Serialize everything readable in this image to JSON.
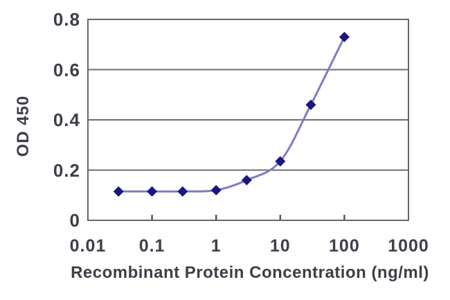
{
  "figure": {
    "background_color": "#ffffff"
  },
  "chart_data": {
    "type": "line",
    "title": "",
    "xlabel": "Recombinant Protein Concentration (ng/ml)",
    "ylabel": "OD 450",
    "x": [
      0.03,
      0.1,
      0.3,
      1,
      3,
      10,
      30,
      100
    ],
    "y": [
      0.115,
      0.115,
      0.115,
      0.12,
      0.16,
      0.235,
      0.46,
      0.73
    ],
    "xscale": "log",
    "xlim": [
      0.01,
      1000
    ],
    "ylim": [
      0,
      0.8
    ],
    "xtick_labels": [
      "0.01",
      "0.1",
      "1",
      "10",
      "100",
      "1000"
    ],
    "xtick_values": [
      0.01,
      0.1,
      1,
      10,
      100,
      1000
    ],
    "ytick_labels": [
      "0",
      "0.2",
      "0.4",
      "0.6",
      "0.8"
    ],
    "ytick_values": [
      0,
      0.2,
      0.4,
      0.6,
      0.8
    ],
    "grid": "horizontal-only",
    "legend": "none",
    "line_style": "smooth",
    "marker": "diamond",
    "colors": {
      "line": "#7c7cc4",
      "marker": "#18187f",
      "grid": "#6e6e6e",
      "border": "#666666",
      "tick": "#555555",
      "text": "#3e3e48"
    }
  }
}
